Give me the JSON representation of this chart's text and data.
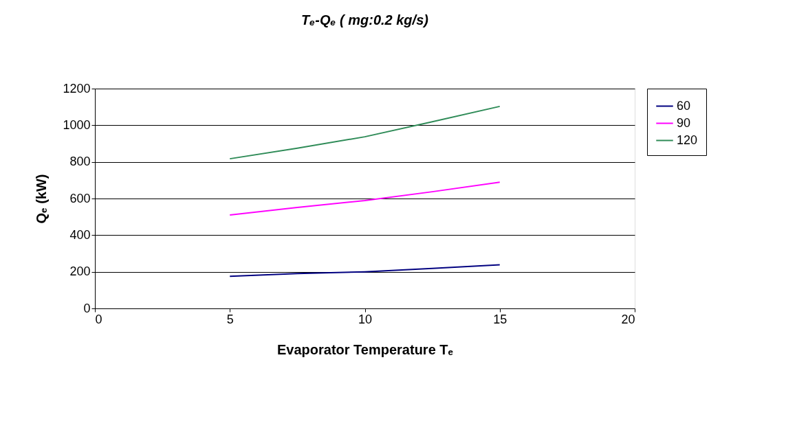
{
  "chart_data": {
    "type": "line",
    "title": "Tₑ-Qₑ ( mg:0.2 kg/s)",
    "xlabel": "Evaporator Temperature Tₑ",
    "ylabel": "Qₑ (kW)",
    "xlim": [
      0,
      20
    ],
    "xticks": [
      0,
      5,
      10,
      15,
      20
    ],
    "ylim": [
      0,
      1200
    ],
    "yticks": [
      0,
      200,
      400,
      600,
      800,
      1000,
      1200
    ],
    "grid": "y",
    "legend": "right",
    "marker": "none",
    "line_style": "solid",
    "x": [
      5,
      7.5,
      10,
      12.5,
      15
    ],
    "series": [
      {
        "name": "60",
        "color": "#000080",
        "values": [
          175,
          190,
          200,
          218,
          238
        ]
      },
      {
        "name": "90",
        "color": "#ff00ff",
        "values": [
          510,
          551,
          589,
          637,
          689
        ]
      },
      {
        "name": "120",
        "color": "#2e8b57",
        "values": [
          817,
          875,
          937,
          1019,
          1103
        ]
      }
    ]
  }
}
